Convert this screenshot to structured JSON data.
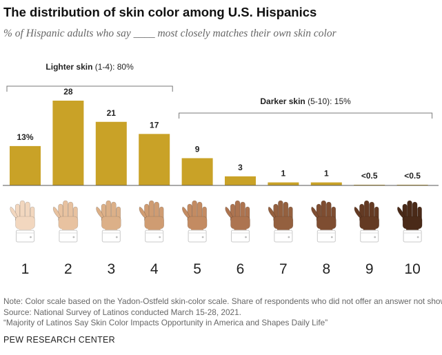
{
  "title": "The distribution of skin color among U.S. Hispanics",
  "subtitle": "% of Hispanic adults who say ____ most closely matches their own skin color",
  "chart_data": {
    "type": "bar",
    "categories": [
      "1",
      "2",
      "3",
      "4",
      "5",
      "6",
      "7",
      "8",
      "9",
      "10"
    ],
    "values": [
      13,
      28,
      21,
      17,
      9,
      3,
      1,
      1,
      0.2,
      0.2
    ],
    "value_labels": [
      "13%",
      "28",
      "21",
      "17",
      "9",
      "3",
      "1",
      "1",
      "<0.5",
      "<0.5"
    ],
    "ylim": [
      0,
      28
    ],
    "grid": false,
    "bar_color": "#c9a227",
    "groups": [
      {
        "label": "Lighter skin",
        "range": "(1-4):",
        "value": "80%",
        "from": 1,
        "to": 4
      },
      {
        "label": "Darker skin",
        "range": "(5-10):",
        "value": "15%",
        "from": 5,
        "to": 10
      }
    ],
    "hand_colors": [
      "#f2d7bf",
      "#e8c2a0",
      "#dcb088",
      "#cf9c72",
      "#c38b62",
      "#ad7450",
      "#94603f",
      "#7e4d31",
      "#643a23",
      "#4a2a18"
    ]
  },
  "notes": [
    "Note: Color scale based on the Yadon-Ostfeld skin-color scale. Share of respondents who did not offer an answer not shown.",
    "Source: National Survey of Latinos conducted March 15-28, 2021.",
    "“Majority of Latinos Say Skin Color Impacts Opportunity in America and Shapes Daily Life”"
  ],
  "credit": "PEW RESEARCH CENTER"
}
